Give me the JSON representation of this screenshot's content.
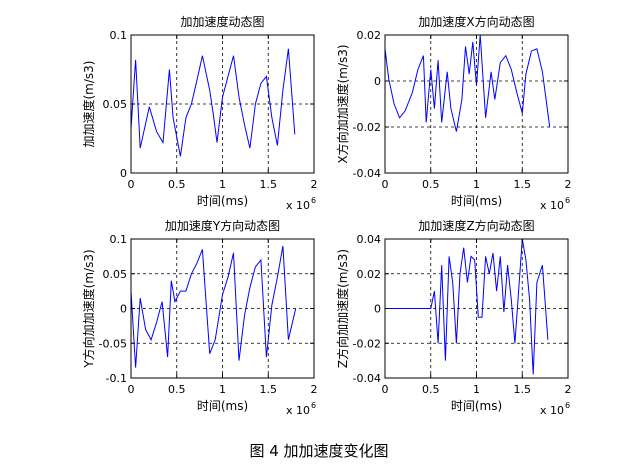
{
  "caption": "图 4  加加速度变化图",
  "chart_data": [
    {
      "type": "line",
      "title": "加加速度动态图",
      "xlabel": "时间(ms)",
      "ylabel": "加加速度(m/s3)",
      "x_exponent": "x 10",
      "x_exponent_power": "6",
      "xlim": [
        0,
        2
      ],
      "ylim": [
        0,
        0.1
      ],
      "xticks": [
        0,
        0.5,
        1,
        1.5,
        2
      ],
      "xticklabels": [
        "0",
        "0.5",
        "1",
        "1.5",
        "2"
      ],
      "yticks": [
        0,
        0.05,
        0.1
      ],
      "yticklabels": [
        "0",
        "0.05",
        "0.1"
      ],
      "grid": true,
      "color": "#0000ff",
      "x": [
        0,
        0.05,
        0.1,
        0.2,
        0.28,
        0.35,
        0.42,
        0.46,
        0.54,
        0.6,
        0.66,
        0.72,
        0.78,
        0.86,
        0.9,
        0.94,
        1.0,
        1.06,
        1.12,
        1.18,
        1.24,
        1.3,
        1.36,
        1.42,
        1.48,
        1.54,
        1.6,
        1.66,
        1.72,
        1.79
      ],
      "y": [
        0.032,
        0.082,
        0.018,
        0.048,
        0.03,
        0.022,
        0.075,
        0.04,
        0.012,
        0.04,
        0.05,
        0.067,
        0.085,
        0.06,
        0.042,
        0.022,
        0.055,
        0.07,
        0.085,
        0.055,
        0.035,
        0.018,
        0.05,
        0.065,
        0.07,
        0.04,
        0.02,
        0.06,
        0.09,
        0.028
      ]
    },
    {
      "type": "line",
      "title": "加加速度X方向动态图",
      "xlabel": "时间(ms)",
      "ylabel": "X方向加加速度(m/s3)",
      "x_exponent": "x 10",
      "x_exponent_power": "6",
      "xlim": [
        0,
        2
      ],
      "ylim": [
        -0.04,
        0.02
      ],
      "xticks": [
        0,
        0.5,
        1,
        1.5,
        2
      ],
      "xticklabels": [
        "0",
        "0.5",
        "1",
        "1.5",
        "2"
      ],
      "yticks": [
        -0.04,
        -0.02,
        0,
        0.02
      ],
      "yticklabels": [
        "-0.04",
        "-0.02",
        "0",
        "0.02"
      ],
      "grid": true,
      "color": "#0000ff",
      "x": [
        0,
        0.04,
        0.1,
        0.16,
        0.22,
        0.3,
        0.36,
        0.42,
        0.45,
        0.5,
        0.54,
        0.58,
        0.62,
        0.68,
        0.72,
        0.78,
        0.84,
        0.88,
        0.92,
        0.96,
        1.0,
        1.04,
        1.1,
        1.16,
        1.2,
        1.26,
        1.32,
        1.38,
        1.44,
        1.5,
        1.54,
        1.6,
        1.66,
        1.72,
        1.8
      ],
      "y": [
        0.014,
        0.001,
        -0.01,
        -0.016,
        -0.013,
        -0.005,
        0.005,
        0.011,
        -0.018,
        0.005,
        -0.012,
        0.009,
        -0.018,
        0.004,
        -0.012,
        -0.022,
        -0.008,
        0.015,
        0.003,
        0.017,
        -0.002,
        0.02,
        -0.016,
        0.004,
        -0.008,
        0.008,
        0.011,
        0.005,
        -0.005,
        -0.014,
        0.003,
        0.013,
        0.014,
        0.004,
        -0.02
      ]
    },
    {
      "type": "line",
      "title": "加加速度Y方向动态图",
      "xlabel": "时间(ms)",
      "ylabel": "Y方向加加速度(m/s3)",
      "x_exponent": "x 10",
      "x_exponent_power": "6",
      "xlim": [
        0,
        2
      ],
      "ylim": [
        -0.1,
        0.1
      ],
      "xticks": [
        0,
        0.5,
        1,
        1.5,
        2
      ],
      "xticklabels": [
        "0",
        "0.5",
        "1",
        "1.5",
        "2"
      ],
      "yticks": [
        -0.1,
        -0.05,
        0,
        0.05,
        0.1
      ],
      "yticklabels": [
        "-0.1",
        "-0.05",
        "0",
        "0.05",
        "0.1"
      ],
      "grid": true,
      "color": "#0000ff",
      "x": [
        0,
        0.05,
        0.1,
        0.16,
        0.22,
        0.28,
        0.34,
        0.4,
        0.44,
        0.48,
        0.54,
        0.6,
        0.66,
        0.72,
        0.78,
        0.86,
        0.92,
        1.0,
        1.06,
        1.12,
        1.18,
        1.24,
        1.3,
        1.36,
        1.42,
        1.48,
        1.54,
        1.6,
        1.66,
        1.72,
        1.8
      ],
      "y": [
        0.025,
        -0.085,
        0.015,
        -0.03,
        -0.045,
        -0.02,
        0.01,
        -0.07,
        0.04,
        0.01,
        0.025,
        0.025,
        0.05,
        0.065,
        0.085,
        -0.065,
        -0.045,
        0.02,
        0.045,
        0.08,
        -0.075,
        -0.01,
        0.03,
        0.06,
        0.07,
        -0.07,
        0.005,
        0.045,
        0.09,
        -0.045,
        0.0
      ]
    },
    {
      "type": "line",
      "title": "加加速度Z方向动态图",
      "xlabel": "时间(ms)",
      "ylabel": "Z方向加加速度(m/s3)",
      "x_exponent": "x 10",
      "x_exponent_power": "6",
      "xlim": [
        0,
        2
      ],
      "ylim": [
        -0.04,
        0.04
      ],
      "xticks": [
        0,
        0.5,
        1,
        1.5,
        2
      ],
      "xticklabels": [
        "0",
        "0.5",
        "1",
        "1.5",
        "2"
      ],
      "yticks": [
        -0.04,
        -0.02,
        0,
        0.02,
        0.04
      ],
      "yticklabels": [
        "-0.04",
        "-0.02",
        "0",
        "0.02",
        "0.04"
      ],
      "grid": true,
      "color": "#0000ff",
      "x": [
        0,
        0.5,
        0.54,
        0.58,
        0.62,
        0.66,
        0.7,
        0.74,
        0.78,
        0.82,
        0.86,
        0.9,
        0.94,
        0.98,
        1.02,
        1.06,
        1.1,
        1.14,
        1.18,
        1.22,
        1.26,
        1.3,
        1.34,
        1.38,
        1.42,
        1.46,
        1.5,
        1.54,
        1.58,
        1.62,
        1.66,
        1.72,
        1.78
      ],
      "y": [
        0,
        0,
        0.01,
        -0.02,
        0.025,
        -0.03,
        0.03,
        0.015,
        -0.02,
        0.02,
        0.035,
        0.015,
        0.03,
        0.028,
        -0.005,
        -0.005,
        0.03,
        0.02,
        0.032,
        0.01,
        0.03,
        -0.002,
        0.025,
        0.005,
        -0.02,
        0.01,
        0.04,
        0.028,
        0.005,
        -0.038,
        0.015,
        0.025,
        -0.018
      ]
    }
  ]
}
